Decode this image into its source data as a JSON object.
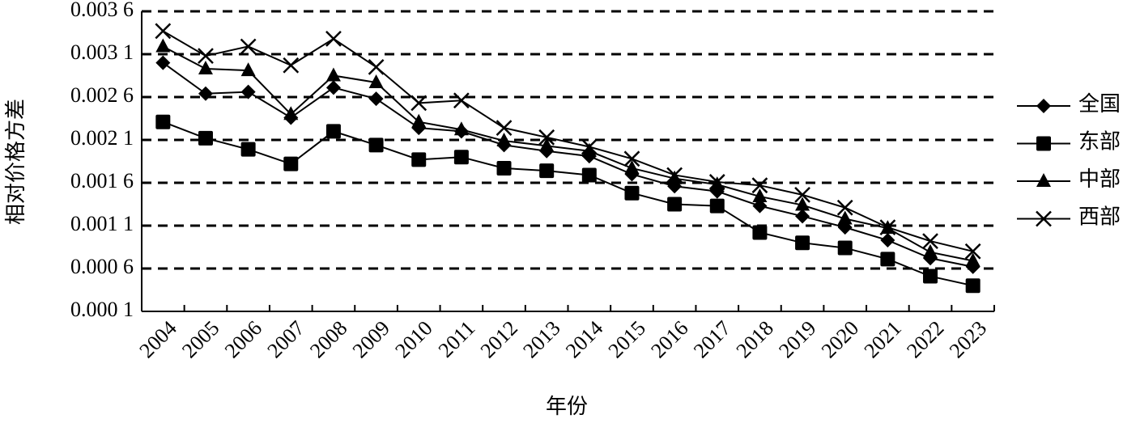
{
  "chart_data": {
    "type": "line",
    "x_label": "年份",
    "y_label": "相对价格方差",
    "categories": [
      "2004",
      "2005",
      "2006",
      "2007",
      "2008",
      "2009",
      "2010",
      "2011",
      "2012",
      "2013",
      "2014",
      "2015",
      "2016",
      "2017",
      "2018",
      "2019",
      "2020",
      "2021",
      "2022",
      "2023"
    ],
    "series": [
      {
        "name": "全国",
        "color": "#000000",
        "marker": "diamond",
        "values": [
          0.003,
          0.00264,
          0.00266,
          0.00236,
          0.00271,
          0.00258,
          0.00224,
          0.0022,
          0.00204,
          0.00197,
          0.00191,
          0.0017,
          0.00156,
          0.0015,
          0.00133,
          0.00121,
          0.00108,
          0.00093,
          0.00072,
          0.00062
        ]
      },
      {
        "name": "东部",
        "color": "#000000",
        "marker": "square",
        "values": [
          0.00231,
          0.00212,
          0.00199,
          0.00182,
          0.0022,
          0.00204,
          0.00187,
          0.0019,
          0.00177,
          0.00174,
          0.00169,
          0.00148,
          0.00135,
          0.00133,
          0.00102,
          0.0009,
          0.00084,
          0.00071,
          0.00051,
          0.0004
        ]
      },
      {
        "name": "中部",
        "color": "#000000",
        "marker": "triangle",
        "values": [
          0.00319,
          0.00293,
          0.00291,
          0.0024,
          0.00285,
          0.00277,
          0.00231,
          0.00222,
          0.00209,
          0.00203,
          0.00197,
          0.00177,
          0.00165,
          0.00158,
          0.00144,
          0.00134,
          0.00118,
          0.00107,
          0.00079,
          0.00069
        ]
      },
      {
        "name": "西部",
        "color": "#000000",
        "marker": "x",
        "values": [
          0.00337,
          0.00308,
          0.00319,
          0.00297,
          0.00328,
          0.00295,
          0.00253,
          0.00256,
          0.00224,
          0.00213,
          0.00202,
          0.00188,
          0.00169,
          0.00161,
          0.00157,
          0.00146,
          0.00131,
          0.00108,
          0.00092,
          0.0008
        ]
      }
    ],
    "ylim": [
      0.0001,
      0.0036
    ],
    "yticks": [
      {
        "value": 0.0001,
        "label": "0.000 1"
      },
      {
        "value": 0.0006,
        "label": "0.000 6"
      },
      {
        "value": 0.0011,
        "label": "0.001 1"
      },
      {
        "value": 0.0016,
        "label": "0.001 6"
      },
      {
        "value": 0.0021,
        "label": "0.002 1"
      },
      {
        "value": 0.0026,
        "label": "0.002 6"
      },
      {
        "value": 0.0031,
        "label": "0.003 1"
      },
      {
        "value": 0.0036,
        "label": "0.003 6"
      }
    ],
    "grid": true,
    "grid_style": "dashed",
    "legend": "right"
  }
}
